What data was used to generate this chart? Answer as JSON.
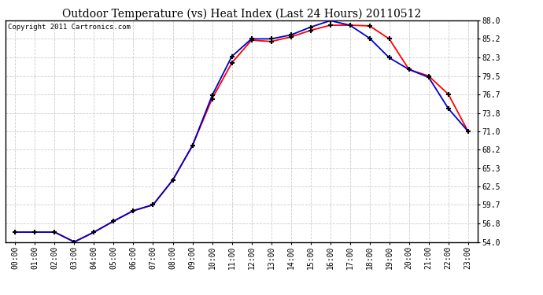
{
  "title": "Outdoor Temperature (vs) Heat Index (Last 24 Hours) 20110512",
  "copyright": "Copyright 2011 Cartronics.com",
  "x_labels": [
    "00:00",
    "01:00",
    "02:00",
    "03:00",
    "04:00",
    "05:00",
    "06:00",
    "07:00",
    "08:00",
    "09:00",
    "10:00",
    "11:00",
    "12:00",
    "13:00",
    "14:00",
    "15:00",
    "16:00",
    "17:00",
    "18:00",
    "19:00",
    "20:00",
    "21:00",
    "22:00",
    "23:00"
  ],
  "temp_data": [
    55.5,
    55.5,
    55.5,
    54.0,
    55.5,
    57.2,
    58.8,
    59.7,
    63.5,
    68.8,
    76.0,
    81.5,
    85.0,
    84.8,
    85.5,
    86.5,
    87.3,
    87.3,
    87.2,
    85.2,
    80.5,
    79.5,
    76.7,
    71.0
  ],
  "heat_index_data": [
    55.5,
    55.5,
    55.5,
    54.0,
    55.5,
    57.2,
    58.8,
    59.7,
    63.5,
    68.8,
    76.5,
    82.5,
    85.2,
    85.2,
    85.8,
    87.0,
    88.0,
    87.3,
    85.3,
    82.3,
    80.5,
    79.3,
    74.5,
    71.0
  ],
  "temp_color": "#ff0000",
  "heat_index_color": "#0000cc",
  "background_color": "#ffffff",
  "plot_bg_color": "#ffffff",
  "grid_color": "#cccccc",
  "ylim": [
    54.0,
    88.0
  ],
  "yticks": [
    54.0,
    56.8,
    59.7,
    62.5,
    65.3,
    68.2,
    71.0,
    73.8,
    76.7,
    79.5,
    82.3,
    85.2,
    88.0
  ],
  "title_fontsize": 10,
  "copyright_fontsize": 6.5,
  "tick_fontsize": 7,
  "marker": "+",
  "markersize": 4,
  "markeredgewidth": 1.5,
  "linewidth": 1.3
}
